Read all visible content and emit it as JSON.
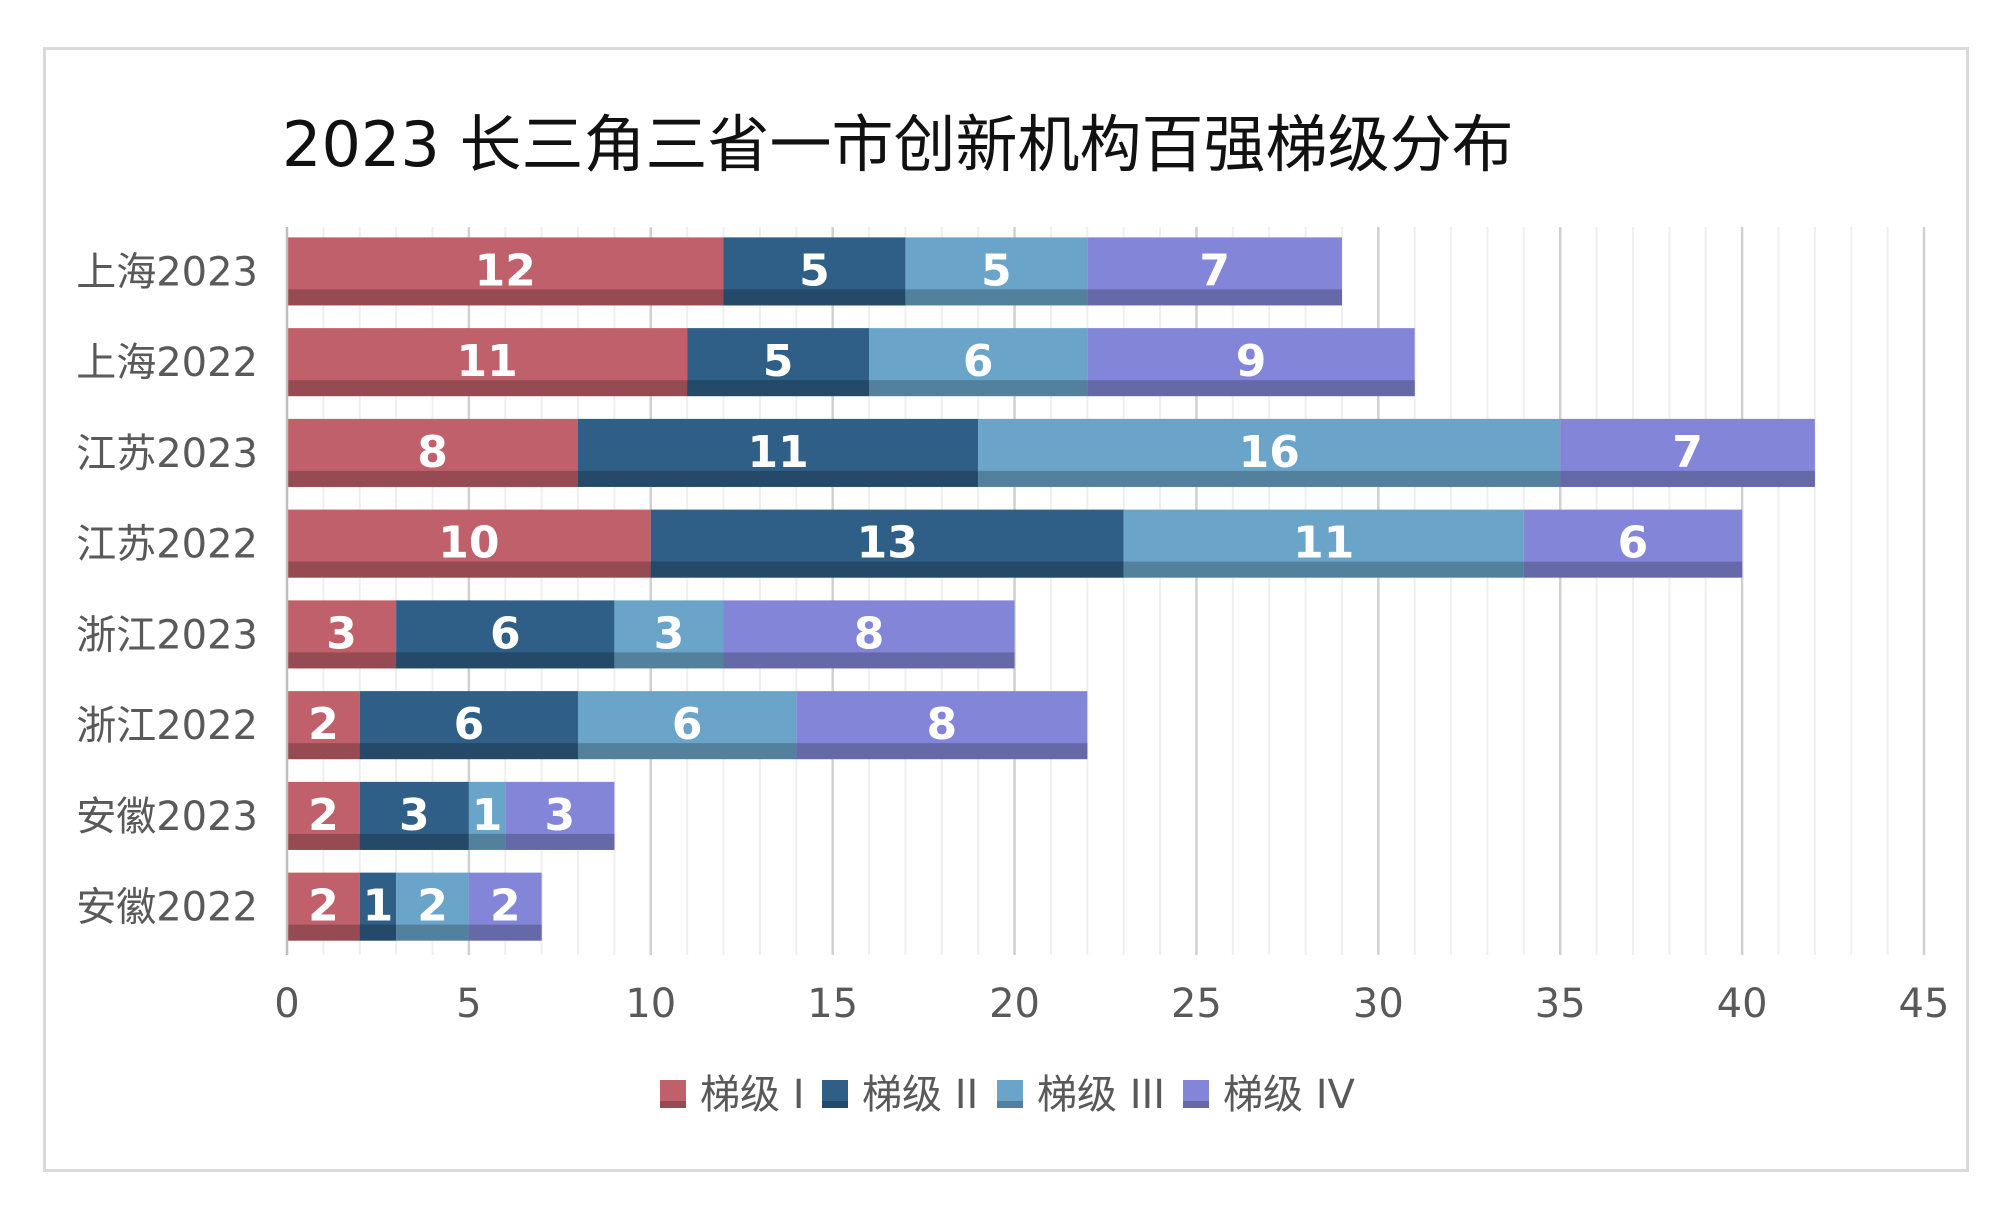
{
  "chart_data": {
    "type": "bar",
    "orientation": "horizontal",
    "stacked": true,
    "title": "2023 长三角三省一市创新机构百强梯级分布",
    "categories": [
      "上海2023",
      "上海2022",
      "江苏2023",
      "江苏2022",
      "浙江2023",
      "浙江2022",
      "安徽2023",
      "安徽2022"
    ],
    "series": [
      {
        "name": "梯级 I",
        "color": "#c0606a",
        "values": [
          12,
          11,
          8,
          10,
          3,
          2,
          2,
          2
        ]
      },
      {
        "name": "梯级 II",
        "color": "#2f5f86",
        "values": [
          5,
          5,
          11,
          13,
          6,
          6,
          3,
          1
        ]
      },
      {
        "name": "梯级 III",
        "color": "#6aa4c8",
        "values": [
          5,
          6,
          16,
          11,
          3,
          6,
          1,
          2
        ]
      },
      {
        "name": "梯级 IV",
        "color": "#8386d8",
        "values": [
          7,
          9,
          7,
          6,
          8,
          8,
          3,
          2
        ]
      }
    ],
    "xlim": [
      0,
      45
    ],
    "xticks": [
      0,
      5,
      10,
      15,
      20,
      25,
      30,
      35,
      40,
      45
    ],
    "xtick_labels": [
      "0",
      "5",
      "10",
      "15",
      "20",
      "25",
      "30",
      "35",
      "40",
      "45"
    ],
    "grid": true,
    "legend": "bottom",
    "data_labels": true
  }
}
